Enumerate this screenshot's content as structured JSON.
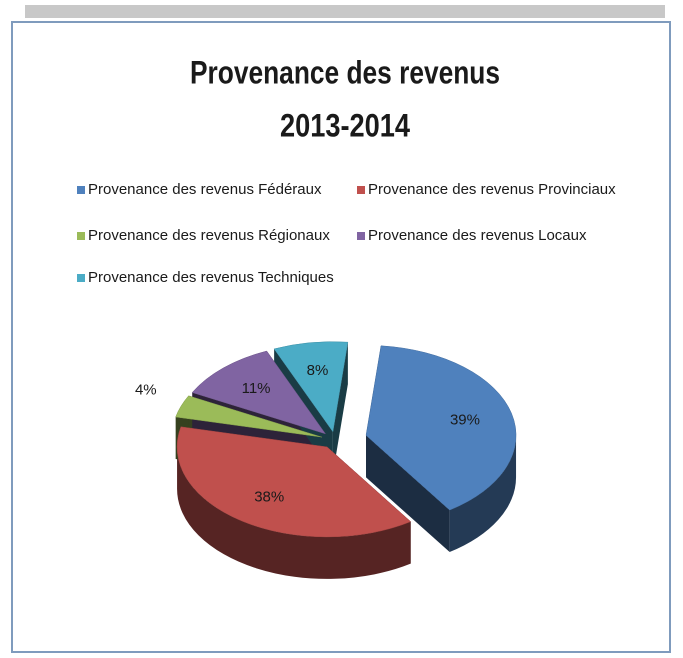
{
  "chart_data": {
    "type": "pie",
    "title": [
      "Provenance des revenus",
      "2013-2014"
    ],
    "categories": [
      "Provenance des revenus Fédéraux",
      "Provenance des revenus Provinciaux",
      "Provenance des revenus Régionaux",
      "Provenance des revenus Locaux",
      "Provenance des revenus Techniques"
    ],
    "values": [
      39,
      38,
      4,
      11,
      8
    ],
    "value_labels": [
      "39%",
      "38%",
      "4%",
      "11%",
      "8%"
    ],
    "colors": [
      "#4f81bd",
      "#c0504d",
      "#9bbb59",
      "#8064a2",
      "#4bacc6"
    ],
    "legend": "top"
  }
}
